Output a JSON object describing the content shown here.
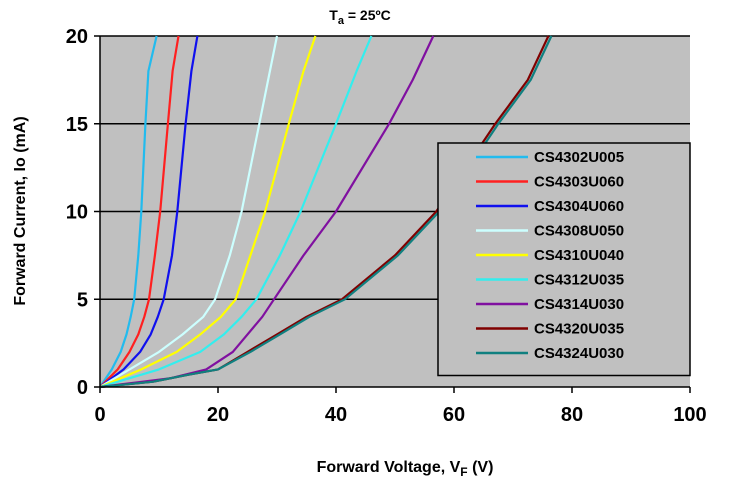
{
  "chart_data": {
    "type": "line",
    "title": {
      "main": "T",
      "sub": "a",
      "rest": " = 25ºC"
    },
    "xlabel": {
      "main": "Forward Voltage, V",
      "sub": "F",
      "rest": " (V)"
    },
    "ylabel": "Forward Current, Io (mA)",
    "xlim": [
      0,
      100
    ],
    "ylim": [
      0,
      20
    ],
    "x_ticks": [
      "0",
      "20",
      "40",
      "60",
      "80",
      "100"
    ],
    "y_ticks": [
      "0",
      "5",
      "10",
      "15",
      "20"
    ],
    "grid": "horizontal",
    "plot_background": "#c0c0c0",
    "legend_position": "right",
    "series": [
      {
        "name": "CS4302U005",
        "color": "#22bbee",
        "points": [
          [
            0,
            0
          ],
          [
            2,
            1
          ],
          [
            3.5,
            2
          ],
          [
            4.5,
            3
          ],
          [
            5.2,
            4
          ],
          [
            5.8,
            5
          ],
          [
            6.5,
            7.5
          ],
          [
            7,
            10
          ],
          [
            7.7,
            15
          ],
          [
            8.2,
            18
          ],
          [
            9.6,
            20
          ]
        ]
      },
      {
        "name": "CS4303U060",
        "color": "#ff2020",
        "points": [
          [
            0,
            0
          ],
          [
            3,
            1
          ],
          [
            5,
            2
          ],
          [
            6.5,
            3
          ],
          [
            7.5,
            4
          ],
          [
            8.3,
            5
          ],
          [
            9.3,
            7.5
          ],
          [
            10.2,
            10
          ],
          [
            11.5,
            15
          ],
          [
            12.3,
            18
          ],
          [
            13.3,
            20
          ]
        ]
      },
      {
        "name": "CS4304U060",
        "color": "#1010ee",
        "points": [
          [
            0,
            0
          ],
          [
            4,
            1
          ],
          [
            6.8,
            2
          ],
          [
            8.6,
            3
          ],
          [
            9.8,
            4
          ],
          [
            10.8,
            5
          ],
          [
            12.2,
            7.5
          ],
          [
            13.1,
            10
          ],
          [
            14.5,
            15
          ],
          [
            15.5,
            18
          ],
          [
            16.5,
            20
          ]
        ]
      },
      {
        "name": "CS4308U050",
        "color": "#ccffff",
        "points": [
          [
            0,
            0
          ],
          [
            5,
            1
          ],
          [
            10,
            2
          ],
          [
            14,
            3
          ],
          [
            17.5,
            4
          ],
          [
            19.5,
            5
          ],
          [
            22,
            7.5
          ],
          [
            24,
            10
          ],
          [
            27,
            15
          ],
          [
            28.8,
            18
          ],
          [
            30,
            20
          ]
        ]
      },
      {
        "name": "CS4310U040",
        "color": "#ffff00",
        "points": [
          [
            0,
            0
          ],
          [
            7,
            1
          ],
          [
            13,
            2
          ],
          [
            17,
            3
          ],
          [
            20.5,
            4
          ],
          [
            23,
            5
          ],
          [
            25.5,
            7.5
          ],
          [
            28,
            10
          ],
          [
            32,
            15
          ],
          [
            34.5,
            18
          ],
          [
            36.5,
            20
          ]
        ]
      },
      {
        "name": "CS4312U035",
        "color": "#33eeee",
        "points": [
          [
            0,
            0
          ],
          [
            10,
            1
          ],
          [
            17,
            2
          ],
          [
            21,
            3
          ],
          [
            24,
            4
          ],
          [
            26.5,
            5
          ],
          [
            30.5,
            7.5
          ],
          [
            34,
            10
          ],
          [
            40,
            15
          ],
          [
            43.5,
            18
          ],
          [
            46,
            20
          ]
        ]
      },
      {
        "name": "CS4314U030",
        "color": "#8010a0",
        "points": [
          [
            0,
            0
          ],
          [
            12,
            0.5
          ],
          [
            18,
            1
          ],
          [
            22.5,
            2
          ],
          [
            25,
            3
          ],
          [
            27.5,
            4
          ],
          [
            29.5,
            5
          ],
          [
            34.5,
            7.5
          ],
          [
            40,
            10
          ],
          [
            49,
            15
          ],
          [
            53,
            17.5
          ],
          [
            56.5,
            20
          ]
        ]
      },
      {
        "name": "CS4320U035",
        "color": "#800000",
        "points": [
          [
            0,
            0
          ],
          [
            9,
            0.3
          ],
          [
            15,
            0.7
          ],
          [
            20,
            1
          ],
          [
            25,
            2
          ],
          [
            30,
            3
          ],
          [
            35,
            4
          ],
          [
            41,
            5
          ],
          [
            50,
            7.5
          ],
          [
            57,
            10
          ],
          [
            67,
            15
          ],
          [
            72.5,
            17.5
          ],
          [
            76,
            20
          ]
        ]
      },
      {
        "name": "CS4324U030",
        "color": "#108080",
        "points": [
          [
            0,
            0
          ],
          [
            9,
            0.3
          ],
          [
            15,
            0.7
          ],
          [
            20,
            1
          ],
          [
            25.5,
            2
          ],
          [
            30.5,
            3
          ],
          [
            35.5,
            4
          ],
          [
            41.5,
            5
          ],
          [
            50.5,
            7.5
          ],
          [
            57.5,
            10
          ],
          [
            67.5,
            15
          ],
          [
            73,
            17.5
          ],
          [
            76.5,
            20
          ]
        ]
      }
    ]
  }
}
